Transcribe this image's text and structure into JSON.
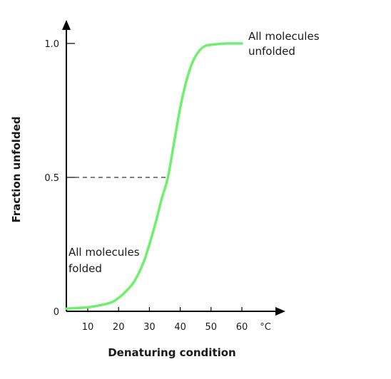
{
  "chart_data": {
    "type": "line",
    "title": "",
    "xlabel": "Denaturing condition",
    "ylabel": "Fraction unfolded",
    "x_unit": "°C",
    "x_ticks": [
      10,
      20,
      30,
      40,
      50,
      60
    ],
    "y_ticks": [
      {
        "value": 0,
        "label": "0"
      },
      {
        "value": 0.5,
        "label": "0.5"
      },
      {
        "value": 1.0,
        "label": "1.0"
      }
    ],
    "xlim": [
      3,
      70
    ],
    "ylim": [
      0,
      1.05
    ],
    "grid": false,
    "series": [
      {
        "color": "#6ef06e",
        "x": [
          3,
          10,
          15,
          18,
          20,
          22,
          25,
          28,
          30,
          32,
          34,
          36,
          38,
          40,
          42,
          44,
          46,
          48,
          50,
          55,
          60
        ],
        "y": [
          0.01,
          0.015,
          0.025,
          0.035,
          0.05,
          0.07,
          0.11,
          0.18,
          0.25,
          0.33,
          0.42,
          0.5,
          0.63,
          0.76,
          0.86,
          0.93,
          0.97,
          0.99,
          0.995,
          1.0,
          1.0
        ]
      }
    ],
    "reference": {
      "x": 36,
      "y": 0.5,
      "style": "dashed"
    },
    "annotations": [
      {
        "lines": [
          "All molecules",
          "unfolded"
        ],
        "anchor": "top-right"
      },
      {
        "lines": [
          "All molecules",
          "folded"
        ],
        "anchor": "bottom-left"
      }
    ]
  }
}
